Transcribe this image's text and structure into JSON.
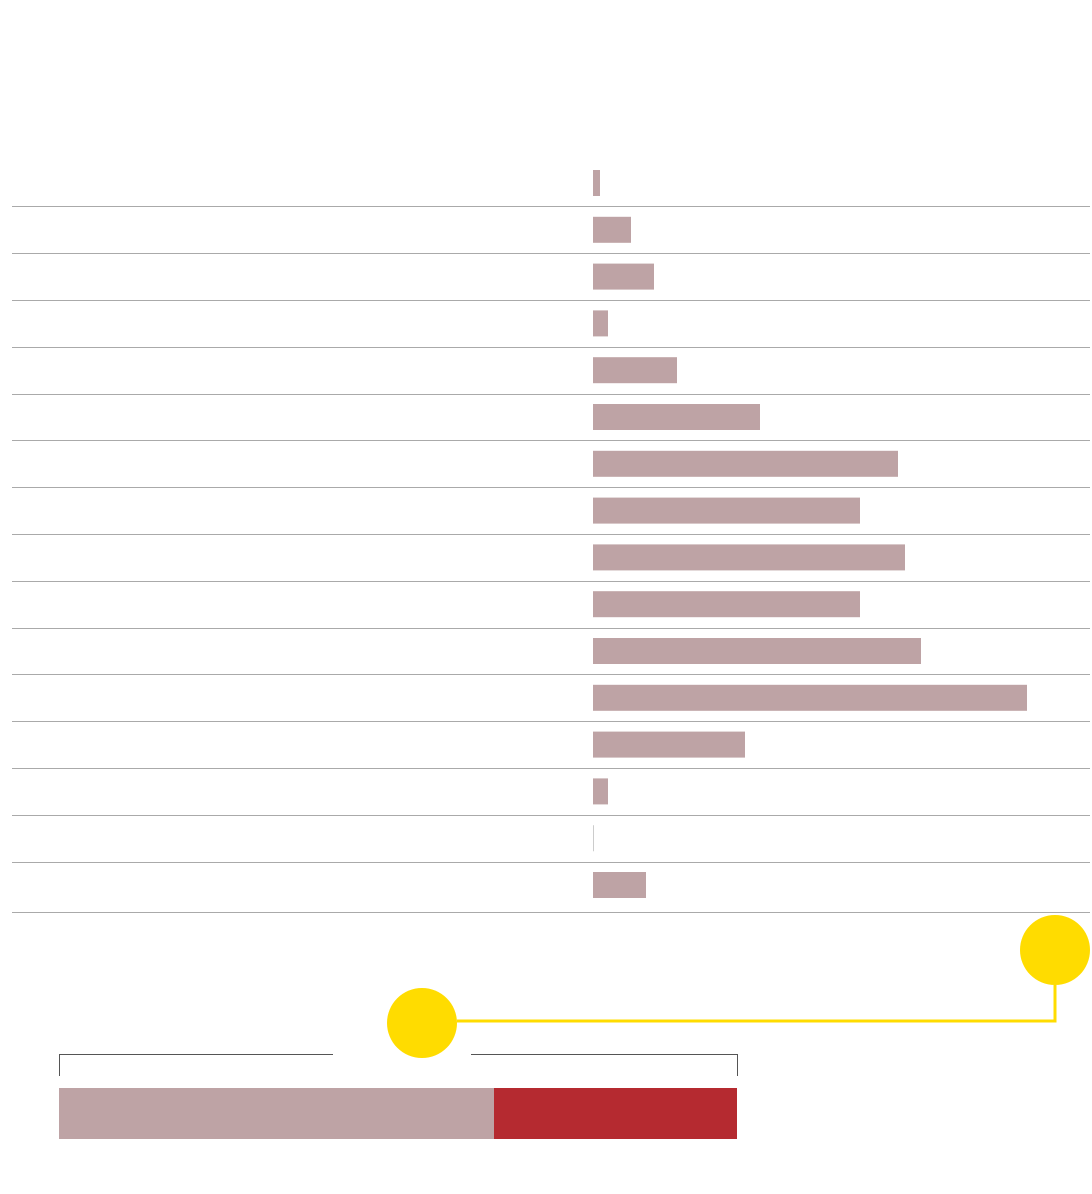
{
  "chart_data": [
    {
      "type": "hbar",
      "color": "#bea3a5",
      "values": [
        7,
        38,
        61,
        15,
        84,
        167,
        305,
        267,
        312,
        267,
        328,
        434,
        152,
        15,
        0,
        53
      ]
    },
    {
      "type": "stacked-hbar",
      "series": [
        {
          "color": "#bea3a5",
          "values": [
            435
          ]
        },
        {
          "color": "#b52a30",
          "values": [
            243
          ]
        }
      ]
    }
  ]
}
